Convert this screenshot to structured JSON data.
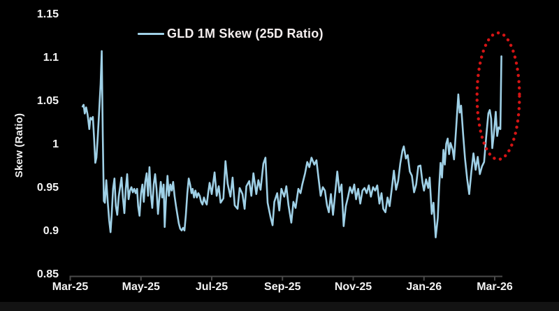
{
  "window": {
    "background": "#000000",
    "bottom_strip_color": "#131313"
  },
  "chart_data": {
    "type": "line",
    "title": "",
    "xlabel": "",
    "ylabel": "Skew (Ratio)",
    "ylim": [
      0.85,
      1.15
    ],
    "grid": false,
    "legend_position": "top-center",
    "background": "#000000",
    "text_color": "#f4f4f4",
    "axis_color": "#4a4a4a",
    "line_color": "#9fd0e6",
    "y_ticks": [
      {
        "label": "1.15",
        "value": 1.15
      },
      {
        "label": "1.1",
        "value": 1.1
      },
      {
        "label": "1.05",
        "value": 1.05
      },
      {
        "label": "1",
        "value": 1.0
      },
      {
        "label": "0.95",
        "value": 0.95
      },
      {
        "label": "0.9",
        "value": 0.9
      },
      {
        "label": "0.85",
        "value": 0.85
      }
    ],
    "x_ticks": [
      {
        "label": "Mar-25",
        "month": 0
      },
      {
        "label": "May-25",
        "month": 2
      },
      {
        "label": "Jul-25",
        "month": 4
      },
      {
        "label": "Sep-25",
        "month": 6
      },
      {
        "label": "Nov-25",
        "month": 8
      },
      {
        "label": "Jan-26",
        "month": 10
      },
      {
        "label": "Mar-26",
        "month": 12
      }
    ],
    "x_unit": "months since Mar-2025 tick",
    "series": [
      {
        "name": "GLD 1M Skew (25D Ratio)",
        "color": "#9fd0e6",
        "points": [
          [
            0.35,
            1.044
          ],
          [
            0.38,
            1.046
          ],
          [
            0.41,
            1.036
          ],
          [
            0.45,
            1.043
          ],
          [
            0.49,
            1.035
          ],
          [
            0.52,
            1.025
          ],
          [
            0.54,
            1.018
          ],
          [
            0.57,
            1.031
          ],
          [
            0.61,
            1.029
          ],
          [
            0.64,
            1.032
          ],
          [
            0.68,
            1.004
          ],
          [
            0.71,
            0.979
          ],
          [
            0.74,
            0.985
          ],
          [
            0.78,
            1.01
          ],
          [
            0.82,
            1.04
          ],
          [
            0.86,
            1.07
          ],
          [
            0.89,
            1.108
          ],
          [
            0.92,
            1.01
          ],
          [
            0.95,
            0.935
          ],
          [
            0.98,
            0.933
          ],
          [
            1.02,
            0.959
          ],
          [
            1.06,
            0.934
          ],
          [
            1.1,
            0.913
          ],
          [
            1.14,
            0.899
          ],
          [
            1.17,
            0.917
          ],
          [
            1.21,
            0.949
          ],
          [
            1.25,
            0.961
          ],
          [
            1.29,
            0.929
          ],
          [
            1.33,
            0.919
          ],
          [
            1.37,
            0.94
          ],
          [
            1.41,
            0.951
          ],
          [
            1.45,
            0.962
          ],
          [
            1.49,
            0.939
          ],
          [
            1.53,
            0.921
          ],
          [
            1.57,
            0.949
          ],
          [
            1.61,
            0.966
          ],
          [
            1.65,
            0.937
          ],
          [
            1.69,
            0.947
          ],
          [
            1.73,
            0.951
          ],
          [
            1.77,
            0.945
          ],
          [
            1.81,
            0.949
          ],
          [
            1.85,
            0.944
          ],
          [
            1.89,
            0.949
          ],
          [
            1.92,
            0.929
          ],
          [
            1.96,
            0.918
          ],
          [
            2.0,
            0.944
          ],
          [
            2.04,
            0.954
          ],
          [
            2.08,
            0.934
          ],
          [
            2.12,
            0.957
          ],
          [
            2.16,
            0.967
          ],
          [
            2.2,
            0.941
          ],
          [
            2.24,
            0.974
          ],
          [
            2.28,
            0.943
          ],
          [
            2.32,
            0.927
          ],
          [
            2.36,
            0.954
          ],
          [
            2.4,
            0.966
          ],
          [
            2.44,
            0.949
          ],
          [
            2.48,
            0.92
          ],
          [
            2.52,
            0.939
          ],
          [
            2.56,
            0.957
          ],
          [
            2.6,
            0.939
          ],
          [
            2.64,
            0.954
          ],
          [
            2.67,
            0.905
          ],
          [
            2.71,
            0.939
          ],
          [
            2.75,
            0.964
          ],
          [
            2.79,
            0.941
          ],
          [
            2.83,
            0.954
          ],
          [
            2.87,
            0.947
          ],
          [
            2.91,
            0.957
          ],
          [
            2.95,
            0.941
          ],
          [
            2.99,
            0.929
          ],
          [
            3.03,
            0.919
          ],
          [
            3.07,
            0.909
          ],
          [
            3.11,
            0.903
          ],
          [
            3.15,
            0.901
          ],
          [
            3.19,
            0.904
          ],
          [
            3.23,
            0.901
          ],
          [
            3.27,
            0.919
          ],
          [
            3.31,
            0.944
          ],
          [
            3.35,
            0.961
          ],
          [
            3.39,
            0.954
          ],
          [
            3.43,
            0.944
          ],
          [
            3.46,
            0.949
          ],
          [
            3.5,
            0.939
          ],
          [
            3.54,
            0.947
          ],
          [
            3.58,
            0.939
          ],
          [
            3.62,
            0.944
          ],
          [
            3.66,
            0.941
          ],
          [
            3.7,
            0.934
          ],
          [
            3.74,
            0.931
          ],
          [
            3.78,
            0.939
          ],
          [
            3.82,
            0.934
          ],
          [
            3.86,
            0.931
          ],
          [
            3.9,
            0.944
          ],
          [
            3.94,
            0.956
          ],
          [
            4.0,
            0.943
          ],
          [
            4.08,
            0.968
          ],
          [
            4.14,
            0.941
          ],
          [
            4.2,
            0.952
          ],
          [
            4.25,
            0.933
          ],
          [
            4.33,
            0.938
          ],
          [
            4.39,
            0.981
          ],
          [
            4.45,
            0.955
          ],
          [
            4.53,
            0.94
          ],
          [
            4.59,
            0.962
          ],
          [
            4.65,
            0.93
          ],
          [
            4.73,
            0.926
          ],
          [
            4.79,
            0.95
          ],
          [
            4.87,
            0.943
          ],
          [
            4.93,
            0.926
          ],
          [
            4.98,
            0.952
          ],
          [
            5.06,
            0.958
          ],
          [
            5.12,
            0.941
          ],
          [
            5.18,
            0.967
          ],
          [
            5.26,
            0.943
          ],
          [
            5.32,
            0.959
          ],
          [
            5.38,
            0.948
          ],
          [
            5.46,
            0.978
          ],
          [
            5.52,
            0.985
          ],
          [
            5.58,
            0.933
          ],
          [
            5.66,
            0.917
          ],
          [
            5.72,
            0.907
          ],
          [
            5.77,
            0.934
          ],
          [
            5.85,
            0.944
          ],
          [
            5.91,
            0.924
          ],
          [
            5.97,
            0.949
          ],
          [
            6.05,
            0.94
          ],
          [
            6.11,
            0.952
          ],
          [
            6.17,
            0.93
          ],
          [
            6.25,
            0.91
          ],
          [
            6.31,
            0.934
          ],
          [
            6.37,
            0.927
          ],
          [
            6.45,
            0.949
          ],
          [
            6.51,
            0.944
          ],
          [
            6.56,
            0.954
          ],
          [
            6.64,
            0.967
          ],
          [
            6.7,
            0.98
          ],
          [
            6.76,
            0.974
          ],
          [
            6.82,
            0.985
          ],
          [
            6.9,
            0.977
          ],
          [
            6.96,
            0.982
          ],
          [
            7.02,
            0.961
          ],
          [
            7.08,
            0.941
          ],
          [
            7.14,
            0.951
          ],
          [
            7.2,
            0.947
          ],
          [
            7.26,
            0.93
          ],
          [
            7.31,
            0.922
          ],
          [
            7.37,
            0.943
          ],
          [
            7.43,
            0.919
          ],
          [
            7.49,
            0.944
          ],
          [
            7.55,
            0.969
          ],
          [
            7.61,
            0.945
          ],
          [
            7.67,
            0.954
          ],
          [
            7.73,
            0.906
          ],
          [
            7.79,
            0.929
          ],
          [
            7.85,
            0.939
          ],
          [
            7.91,
            0.951
          ],
          [
            7.97,
            0.944
          ],
          [
            8.03,
            0.954
          ],
          [
            8.08,
            0.937
          ],
          [
            8.14,
            0.949
          ],
          [
            8.2,
            0.932
          ],
          [
            8.26,
            0.947
          ],
          [
            8.32,
            0.95
          ],
          [
            8.38,
            0.944
          ],
          [
            8.44,
            0.953
          ],
          [
            8.5,
            0.94
          ],
          [
            8.56,
            0.951
          ],
          [
            8.62,
            0.947
          ],
          [
            8.68,
            0.953
          ],
          [
            8.74,
            0.932
          ],
          [
            8.8,
            0.944
          ],
          [
            8.85,
            0.926
          ],
          [
            8.91,
            0.922
          ],
          [
            8.97,
            0.939
          ],
          [
            9.03,
            0.929
          ],
          [
            9.09,
            0.949
          ],
          [
            9.15,
            0.97
          ],
          [
            9.21,
            0.948
          ],
          [
            9.27,
            0.958
          ],
          [
            9.33,
            0.978
          ],
          [
            9.39,
            0.993
          ],
          [
            9.43,
            0.998
          ],
          [
            9.49,
            0.984
          ],
          [
            9.54,
            0.988
          ],
          [
            9.6,
            0.969
          ],
          [
            9.66,
            0.964
          ],
          [
            9.72,
            0.945
          ],
          [
            9.78,
            0.954
          ],
          [
            9.84,
            0.975
          ],
          [
            9.9,
            0.976
          ],
          [
            9.96,
            0.956
          ],
          [
            10.0,
            0.947
          ],
          [
            10.06,
            0.96
          ],
          [
            10.12,
            0.95
          ],
          [
            10.16,
            0.962
          ],
          [
            10.22,
            0.92
          ],
          [
            10.27,
            0.933
          ],
          [
            10.33,
            0.893
          ],
          [
            10.39,
            0.915
          ],
          [
            10.43,
            0.951
          ],
          [
            10.47,
            0.979
          ],
          [
            10.51,
            0.962
          ],
          [
            10.55,
            0.994
          ],
          [
            10.59,
            0.977
          ],
          [
            10.63,
            1.001
          ],
          [
            10.67,
            1.007
          ],
          [
            10.71,
            0.989
          ],
          [
            10.75,
            1.002
          ],
          [
            10.81,
            0.994
          ],
          [
            10.85,
            0.983
          ],
          [
            10.91,
            1.019
          ],
          [
            10.97,
            1.058
          ],
          [
            11.01,
            1.037
          ],
          [
            11.05,
            1.045
          ],
          [
            11.11,
            1.011
          ],
          [
            11.16,
            0.984
          ],
          [
            11.22,
            0.961
          ],
          [
            11.28,
            0.943
          ],
          [
            11.34,
            0.969
          ],
          [
            11.4,
            0.99
          ],
          [
            11.46,
            0.971
          ],
          [
            11.52,
            0.986
          ],
          [
            11.58,
            0.966
          ],
          [
            11.64,
            0.975
          ],
          [
            11.7,
            0.98
          ],
          [
            11.76,
            1.01
          ],
          [
            11.82,
            1.036
          ],
          [
            11.86,
            1.04
          ],
          [
            11.9,
            1.03
          ],
          [
            11.93,
            0.996
          ],
          [
            11.97,
            1.01
          ],
          [
            12.03,
            1.038
          ],
          [
            12.07,
            1.01
          ],
          [
            12.11,
            1.02
          ],
          [
            12.16,
            1.018
          ],
          [
            12.19,
            1.102
          ]
        ]
      }
    ],
    "annotations": [
      {
        "type": "dotted-ellipse",
        "color": "#d41414",
        "x_center_months": 12.1,
        "y_center": 1.056,
        "rx_months": 0.6,
        "ry_value": 0.073,
        "meaning": "highlights final spike in skew"
      }
    ]
  }
}
